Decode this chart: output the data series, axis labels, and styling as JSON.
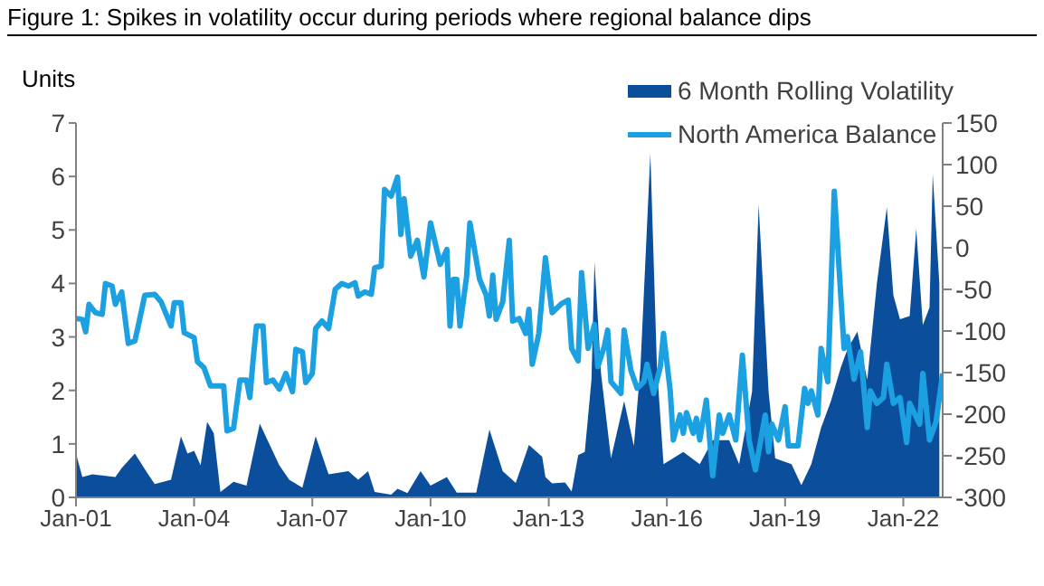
{
  "chart_data": {
    "type": "area",
    "title": "Figure 1: Spikes in volatility occur during periods where regional balance dips",
    "ylabel": "Units",
    "xlim": [
      "2001-01",
      "2023-01"
    ],
    "xticks": [
      {
        "value": "2001-01",
        "label": "Jan-01"
      },
      {
        "value": "2004-01",
        "label": "Jan-04"
      },
      {
        "value": "2007-01",
        "label": "Jan-07"
      },
      {
        "value": "2010-01",
        "label": "Jan-10"
      },
      {
        "value": "2013-01",
        "label": "Jan-13"
      },
      {
        "value": "2016-01",
        "label": "Jan-16"
      },
      {
        "value": "2019-01",
        "label": "Jan-19"
      },
      {
        "value": "2022-01",
        "label": "Jan-22"
      }
    ],
    "ylim": [
      0,
      7
    ],
    "yticks": [
      0,
      1,
      2,
      3,
      4,
      5,
      6,
      7
    ],
    "y2lim": [
      -300,
      150
    ],
    "y2ticks": [
      -300,
      -250,
      -200,
      -150,
      -100,
      -50,
      0,
      50,
      100,
      150
    ],
    "legend": "top right",
    "grid": false,
    "series": [
      {
        "name": "6 Month  Rolling Volatility",
        "color": "#0b4e9b",
        "x": [
          "2001-01",
          "2001-03",
          "2001-06",
          "2002-01",
          "2002-03",
          "2002-07",
          "2002-11",
          "2003-01",
          "2003-06",
          "2003-09",
          "2003-11",
          "2004-01",
          "2004-03",
          "2004-05",
          "2004-07",
          "2004-09",
          "2005-01",
          "2005-05",
          "2005-09",
          "2006-03",
          "2006-06",
          "2006-10",
          "2007-02",
          "2007-06",
          "2007-12",
          "2008-03",
          "2008-06",
          "2008-08",
          "2009-01",
          "2009-03",
          "2009-06",
          "2009-10",
          "2010-01",
          "2010-06",
          "2010-09",
          "2011-03",
          "2011-07",
          "2011-11",
          "2012-03",
          "2012-07",
          "2012-11",
          "2012-12",
          "2013-02",
          "2013-06",
          "2013-08",
          "2013-10",
          "2013-12",
          "2014-02",
          "2014-03",
          "2014-05",
          "2014-08",
          "2014-12",
          "2015-03",
          "2015-05",
          "2015-08",
          "2015-10",
          "2015-12",
          "2016-06",
          "2016-11",
          "2017-03",
          "2017-08",
          "2017-11",
          "2018-03",
          "2018-05",
          "2018-08",
          "2018-10",
          "2019-03",
          "2019-06",
          "2019-09",
          "2019-12",
          "2020-03",
          "2020-06",
          "2020-08",
          "2020-11",
          "2021-02",
          "2021-05",
          "2021-08",
          "2021-10",
          "2021-12",
          "2022-03",
          "2022-05",
          "2022-07",
          "2022-09",
          "2022-10",
          "2022-12"
        ],
        "values": [
          0.82,
          0.38,
          0.43,
          0.38,
          0.55,
          0.82,
          0.43,
          0.25,
          0.33,
          1.14,
          0.82,
          0.87,
          0.6,
          1.41,
          1.2,
          0.1,
          0.29,
          0.22,
          1.38,
          0.6,
          0.33,
          0.18,
          1.14,
          0.43,
          0.49,
          0.33,
          0.49,
          0.1,
          0.05,
          0.16,
          0.08,
          0.49,
          0.22,
          0.38,
          0.09,
          0.09,
          1.27,
          0.49,
          0.27,
          0.98,
          0.76,
          0.38,
          0.26,
          0.28,
          0.11,
          0.79,
          0.85,
          2.2,
          4.4,
          2.31,
          0.73,
          1.8,
          0.96,
          2.43,
          6.43,
          2.43,
          0.62,
          0.85,
          0.62,
          1.07,
          1.07,
          0.62,
          1.98,
          5.47,
          1.98,
          0.73,
          0.62,
          0.23,
          0.62,
          1.3,
          1.8,
          2.43,
          2.77,
          3.1,
          2.2,
          4.0,
          5.42,
          3.78,
          3.33,
          3.39,
          5.02,
          3.22,
          3.55,
          6.04,
          4.0
        ]
      },
      {
        "name": "North America Balance",
        "type": "line",
        "axis": "y2",
        "color": "#1ba1e2",
        "x": [
          "2001-01",
          "2001-03",
          "2001-04",
          "2001-05",
          "2001-07",
          "2001-09",
          "2001-10",
          "2001-12",
          "2002-01",
          "2002-03",
          "2002-05",
          "2002-07",
          "2002-08",
          "2002-10",
          "2003-01",
          "2003-03",
          "2003-06",
          "2003-07",
          "2003-09",
          "2003-10",
          "2004-01",
          "2004-02",
          "2004-04",
          "2004-06",
          "2004-10",
          "2004-11",
          "2005-01",
          "2005-03",
          "2005-05",
          "2005-06",
          "2005-07",
          "2005-08",
          "2005-10",
          "2005-11",
          "2006-01",
          "2006-03",
          "2006-05",
          "2006-07",
          "2006-08",
          "2006-10",
          "2006-11",
          "2007-01",
          "2007-02",
          "2007-04",
          "2007-06",
          "2007-08",
          "2007-10",
          "2007-12",
          "2008-02",
          "2008-03",
          "2008-05",
          "2008-07",
          "2008-08",
          "2008-10",
          "2008-11",
          "2009-01",
          "2009-03",
          "2009-04",
          "2009-05",
          "2009-07",
          "2009-09",
          "2009-11",
          "2010-01",
          "2010-04",
          "2010-06",
          "2010-07",
          "2010-08",
          "2010-09",
          "2010-10",
          "2010-12",
          "2011-01",
          "2011-04",
          "2011-06",
          "2011-07",
          "2011-08",
          "2011-09",
          "2011-11",
          "2012-01",
          "2012-02",
          "2012-04",
          "2012-06",
          "2012-07",
          "2012-08",
          "2012-10",
          "2012-12",
          "2013-02",
          "2013-05",
          "2013-07",
          "2013-08",
          "2013-10",
          "2013-11",
          "2014-01",
          "2014-03",
          "2014-04",
          "2014-06",
          "2014-07",
          "2014-08",
          "2014-11",
          "2014-12",
          "2015-02",
          "2015-04",
          "2015-06",
          "2015-07",
          "2015-09",
          "2015-11",
          "2015-12",
          "2016-02",
          "2016-03",
          "2016-05",
          "2016-06",
          "2016-07",
          "2016-09",
          "2016-10",
          "2016-11",
          "2017-01",
          "2017-03",
          "2017-05",
          "2017-06",
          "2017-08",
          "2017-10",
          "2017-12",
          "2018-02",
          "2018-04",
          "2018-07",
          "2018-08",
          "2018-09",
          "2018-11",
          "2019-01",
          "2019-02",
          "2019-05",
          "2019-07",
          "2019-08",
          "2019-09",
          "2019-11",
          "2019-12",
          "2020-02",
          "2020-04",
          "2020-07",
          "2020-08",
          "2020-10",
          "2020-12",
          "2021-02",
          "2021-03",
          "2021-05",
          "2021-07",
          "2021-08",
          "2021-10",
          "2021-12",
          "2022-02",
          "2022-03",
          "2022-06",
          "2022-07",
          "2022-09",
          "2022-11",
          "2023-01"
        ],
        "values": [
          -85,
          -86,
          -101,
          -68,
          -78,
          -80,
          -43,
          -46,
          -68,
          -53,
          -115,
          -112,
          -94,
          -57,
          -56,
          -65,
          -94,
          -66,
          -66,
          -102,
          -108,
          -137,
          -144,
          -166,
          -166,
          -220,
          -217,
          -159,
          -159,
          -180,
          -135,
          -94,
          -94,
          -162,
          -159,
          -170,
          -151,
          -173,
          -122,
          -125,
          -162,
          -151,
          -97,
          -88,
          -97,
          -50,
          -43,
          -46,
          -42,
          -58,
          -53,
          -56,
          -24,
          -22,
          70,
          62,
          85,
          16,
          59,
          -10,
          9,
          -35,
          30,
          -20,
          -2,
          -94,
          -38,
          -38,
          -94,
          -35,
          30,
          -38,
          -57,
          -82,
          -33,
          -86,
          -65,
          9,
          -88,
          -85,
          -103,
          -74,
          -140,
          -103,
          -12,
          -78,
          -67,
          -63,
          -121,
          -136,
          -30,
          -121,
          -92,
          -143,
          -118,
          -99,
          -161,
          -175,
          -99,
          -147,
          -169,
          -161,
          -140,
          -175,
          -143,
          -103,
          -172,
          -231,
          -201,
          -223,
          -198,
          -223,
          -205,
          -231,
          -183,
          -274,
          -201,
          -223,
          -201,
          -231,
          -129,
          -231,
          -267,
          -201,
          -245,
          -212,
          -231,
          -191,
          -238,
          -238,
          -169,
          -187,
          -172,
          -201,
          -121,
          -161,
          68,
          -121,
          -107,
          -158,
          -125,
          -216,
          -172,
          -187,
          -180,
          -140,
          -187,
          -180,
          -234,
          -187,
          -212,
          -151,
          -231,
          -209,
          -151
        ]
      }
    ]
  }
}
